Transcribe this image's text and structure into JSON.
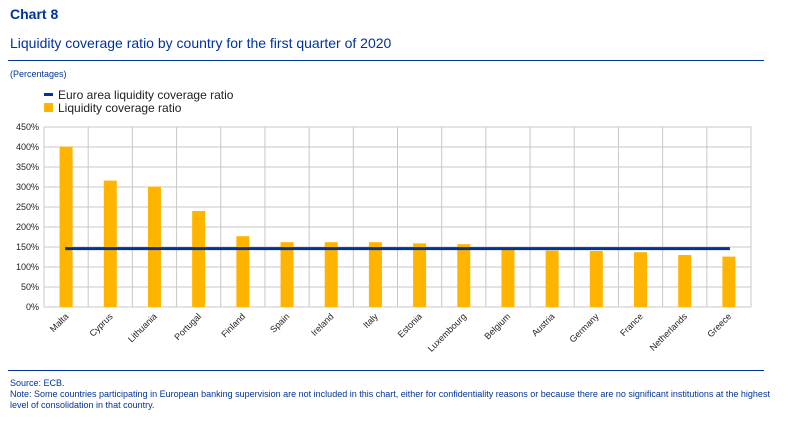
{
  "header": {
    "chart_label": "Chart 8",
    "title": "Liquidity coverage ratio by country for the first quarter of 2020",
    "unit": "(Percentages)"
  },
  "legend": {
    "line_label": "Euro area liquidity coverage ratio",
    "bar_label": "Liquidity coverage ratio"
  },
  "footer": {
    "source": "Source: ECB.",
    "note": "Note: Some countries participating in European banking supervision are not included in this chart, either for confidentiality reasons or because there are no significant institutions at the highest level of consolidation in that country."
  },
  "colors": {
    "bar": "#ffb400",
    "line": "#003399",
    "grid": "#c8c8c8",
    "text": "#003399"
  },
  "chart_data": {
    "type": "bar",
    "categories": [
      "Malta",
      "Cyprus",
      "Lithuania",
      "Portugal",
      "Finland",
      "Spain",
      "Ireland",
      "Italy",
      "Estonia",
      "Luxembourg",
      "Belgium",
      "Austria",
      "Germany",
      "France",
      "Netherlands",
      "Greece"
    ],
    "series": [
      {
        "name": "Liquidity coverage ratio",
        "type": "bar",
        "values": [
          401,
          316,
          301,
          240,
          177,
          162,
          162,
          162,
          159,
          157,
          145,
          141,
          140,
          137,
          130,
          126
        ]
      },
      {
        "name": "Euro area liquidity coverage ratio",
        "type": "line",
        "value": 146
      }
    ],
    "ylim": [
      0,
      450
    ],
    "yticks": [
      0,
      50,
      100,
      150,
      200,
      250,
      300,
      350,
      400,
      450
    ],
    "ytick_labels": [
      "0%",
      "50%",
      "100%",
      "150%",
      "200%",
      "250%",
      "300%",
      "350%",
      "400%",
      "450%"
    ],
    "grid": true,
    "legend_position": "top-left"
  }
}
